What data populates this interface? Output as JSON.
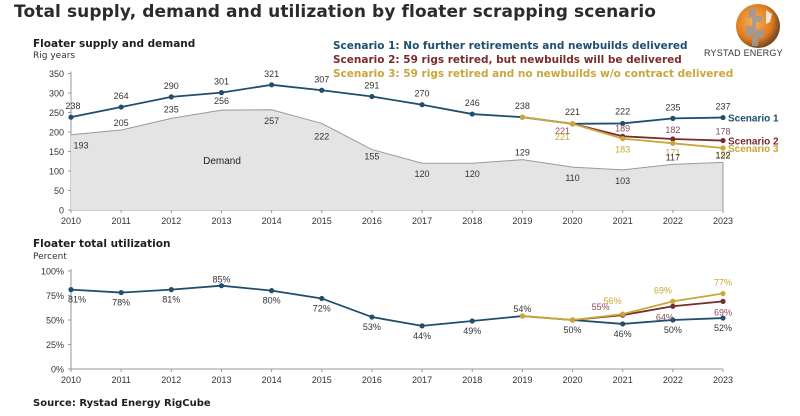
{
  "title": "Total supply, demand and utilization by floater scrapping scenario",
  "brand": "RYSTAD ENERGY",
  "source": "Source: Rystad Energy RigCube",
  "legend": [
    {
      "label": "Scenario 1: No further retirements and newbuilds delivered",
      "color": "#1f4e6e"
    },
    {
      "label": "Scenario 2: 59 rigs retired, but newbuilds will be delivered",
      "color": "#7a2b2b"
    },
    {
      "label": "Scenario 3: 59 rigs retired and no newbuilds w/o contract delivered",
      "color": "#c9a63a"
    }
  ],
  "chart_data": [
    {
      "type": "line",
      "title": "Floater supply and demand",
      "ylabel": "Rig years",
      "xlabel": "",
      "ylim": [
        0,
        350
      ],
      "yticks": [
        0,
        50,
        100,
        150,
        200,
        250,
        300,
        350
      ],
      "x": [
        "2010",
        "2011",
        "2012",
        "2013",
        "2014",
        "2015",
        "2016",
        "2017",
        "2018",
        "2019",
        "2020",
        "2021",
        "2022",
        "2023"
      ],
      "series": [
        {
          "name": "Scenario 1",
          "color": "#1f4e6e",
          "x_start": "2010",
          "values": [
            238,
            264,
            290,
            301,
            321,
            307,
            291,
            270,
            246,
            238,
            221,
            222,
            235,
            237
          ],
          "labels": [
            "238",
            "264",
            "290",
            "301",
            "321",
            "307",
            "291",
            "270",
            "246",
            "238",
            "221",
            "222",
            "235",
            "237"
          ],
          "end_label": "Scenario 1"
        },
        {
          "name": "Scenario 2",
          "color": "#7a2b2b",
          "x_start": "2020",
          "values": [
            221,
            189,
            182,
            178
          ],
          "labels": [
            "221",
            "189",
            "182",
            "178"
          ],
          "end_label": "Scenario 2"
        },
        {
          "name": "Scenario 3",
          "color": "#c9a63a",
          "x_start": "2019",
          "values": [
            238,
            221,
            183,
            171,
            159
          ],
          "labels": [
            "",
            "221",
            "183",
            "171",
            "159"
          ],
          "end_label": "Scenario 3"
        },
        {
          "name": "Demand",
          "type": "area",
          "color": "#e4e4e4",
          "x_start": "2010",
          "values": [
            193,
            205,
            235,
            256,
            257,
            222,
            155,
            120,
            120,
            129,
            110,
            103,
            117,
            122
          ],
          "labels": [
            "193",
            "205",
            "235",
            "256",
            "257",
            "222",
            "155",
            "120",
            "120",
            "129",
            "110",
            "103",
            "117",
            "122"
          ],
          "area_label": "Demand"
        }
      ]
    },
    {
      "type": "line",
      "title": "Floater total utilization",
      "ylabel": "Percent",
      "xlabel": "",
      "ylim": [
        0,
        100
      ],
      "yticks": [
        "0%",
        "25%",
        "50%",
        "75%",
        "100%"
      ],
      "x": [
        "2010",
        "2011",
        "2012",
        "2013",
        "2014",
        "2015",
        "2016",
        "2017",
        "2018",
        "2019",
        "2020",
        "2021",
        "2022",
        "2023"
      ],
      "series": [
        {
          "name": "Scenario 1",
          "color": "#1f4e6e",
          "x_start": "2010",
          "values": [
            81,
            78,
            81,
            85,
            80,
            72,
            53,
            44,
            49,
            54,
            50,
            46,
            50,
            52
          ],
          "labels": [
            "81%",
            "78%",
            "81%",
            "85%",
            "80%",
            "72%",
            "53%",
            "44%",
            "49%",
            "54%",
            "50%",
            "46%",
            "50%",
            "52%"
          ]
        },
        {
          "name": "Scenario 2",
          "color": "#7a2b2b",
          "x_start": "2020",
          "values": [
            50,
            55,
            64,
            69
          ],
          "labels": [
            "",
            "55%",
            "64%",
            "69%"
          ]
        },
        {
          "name": "Scenario 3",
          "color": "#c9a63a",
          "x_start": "2019",
          "values": [
            54,
            50,
            56,
            69,
            77
          ],
          "labels": [
            "",
            "",
            "56%",
            "69%",
            "77%"
          ]
        }
      ]
    }
  ]
}
